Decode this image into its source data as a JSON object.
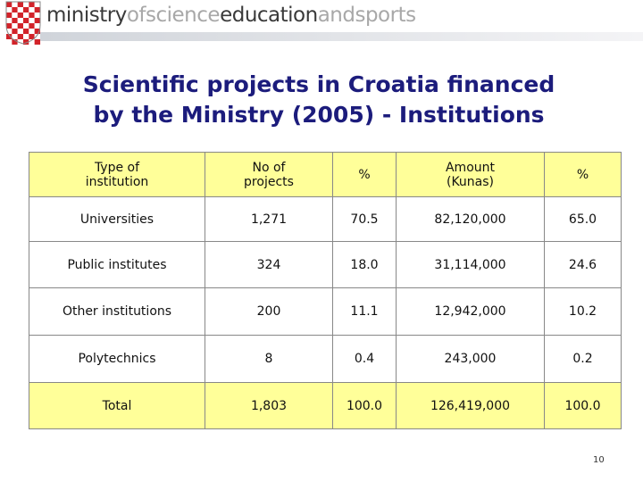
{
  "header": {
    "logo": [
      "ministry",
      "ofscience",
      "education",
      "andsports"
    ]
  },
  "title": [
    "Scientific projects in Croatia financed",
    "by the Ministry (2005) - Institutions"
  ],
  "table": {
    "columns": [
      "Type of institution",
      "No of projects",
      "%",
      "Amount (Kunas)",
      "%"
    ],
    "rows": [
      [
        "Universities",
        "1,271",
        "70.5",
        "82,120,000",
        "65.0"
      ],
      [
        "Public institutes",
        "324",
        "18.0",
        "31,114,000",
        "24.6"
      ],
      [
        "Other institutions",
        "200",
        "11.1",
        "12,942,000",
        "10.2"
      ],
      [
        "Polytechnics",
        "8",
        "0.4",
        "243,000",
        "0.2"
      ],
      [
        "Total",
        "1,803",
        "100.0",
        "126,419,000",
        "100.0"
      ]
    ]
  },
  "page_number": "10"
}
